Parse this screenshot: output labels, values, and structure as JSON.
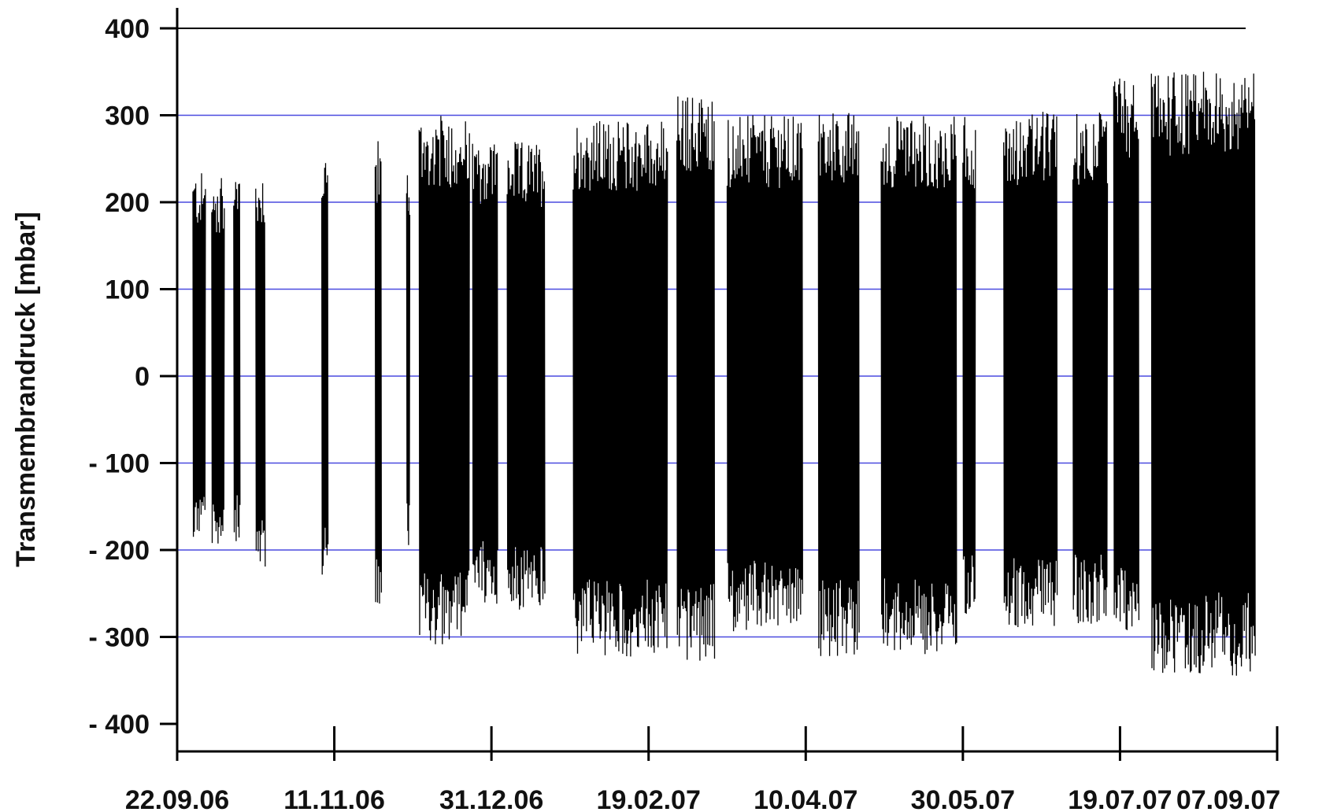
{
  "chart_data": {
    "type": "line",
    "title": "",
    "xlabel": "",
    "ylabel": "Transmembrandruck [mbar]",
    "ylim": [
      -400,
      400
    ],
    "xlim": [
      "22.09.06",
      "07.09.07"
    ],
    "grid": {
      "horizontal": true,
      "vertical": false
    },
    "colors": {
      "line": "#000000",
      "grid": "#4a4adf",
      "top_line": "#000000",
      "axis": "#000000"
    },
    "y_ticks": [
      {
        "value": 400,
        "label": "400"
      },
      {
        "value": 300,
        "label": "300"
      },
      {
        "value": 200,
        "label": "200"
      },
      {
        "value": 100,
        "label": "100"
      },
      {
        "value": 0,
        "label": "0"
      },
      {
        "value": -100,
        "label": "- 100"
      },
      {
        "value": -200,
        "label": "- 200"
      },
      {
        "value": -300,
        "label": "- 300"
      },
      {
        "value": -400,
        "label": "- 400"
      }
    ],
    "x_ticks": [
      {
        "date": "2006-09-22",
        "label": "22.09.06"
      },
      {
        "date": "2006-11-11",
        "label": "11.11.06"
      },
      {
        "date": "2006-12-31",
        "label": "31.12.06"
      },
      {
        "date": "2007-02-19",
        "label": "19.02.07"
      },
      {
        "date": "2007-04-10",
        "label": "10.04.07"
      },
      {
        "date": "2007-05-30",
        "label": "30.05.07"
      },
      {
        "date": "2007-07-19",
        "label": "19.07.07"
      },
      {
        "date": "2007-09-07",
        "label": "07.09.07"
      }
    ],
    "series": [
      {
        "segments": [
          {
            "start": "2006-09-27",
            "end": "2006-10-01",
            "max": 235,
            "min": -185
          },
          {
            "start": "2006-10-03",
            "end": "2006-10-07",
            "max": 228,
            "min": -195
          },
          {
            "start": "2006-10-10",
            "end": "2006-10-12",
            "max": 243,
            "min": -190
          },
          {
            "start": "2006-10-17",
            "end": "2006-10-20",
            "max": 237,
            "min": -220
          },
          {
            "start": "2006-11-07",
            "end": "2006-11-09",
            "max": 262,
            "min": -230
          },
          {
            "start": "2006-11-24",
            "end": "2006-11-26",
            "max": 272,
            "min": -265
          },
          {
            "start": "2006-12-04",
            "end": "2006-12-05",
            "max": 237,
            "min": -197
          },
          {
            "start": "2006-12-08",
            "end": "2006-12-24",
            "max": 300,
            "min": -310
          },
          {
            "start": "2006-12-25",
            "end": "2007-01-02",
            "max": 275,
            "min": -262
          },
          {
            "start": "2007-01-05",
            "end": "2007-01-17",
            "max": 270,
            "min": -272
          },
          {
            "start": "2007-01-26",
            "end": "2007-02-25",
            "max": 295,
            "min": -325
          },
          {
            "start": "2007-02-28",
            "end": "2007-03-12",
            "max": 325,
            "min": -330
          },
          {
            "start": "2007-03-16",
            "end": "2007-04-09",
            "max": 300,
            "min": -295
          },
          {
            "start": "2007-04-14",
            "end": "2007-04-27",
            "max": 305,
            "min": -325
          },
          {
            "start": "2007-05-04",
            "end": "2007-05-28",
            "max": 300,
            "min": -320
          },
          {
            "start": "2007-05-30",
            "end": "2007-06-03",
            "max": 300,
            "min": -285
          },
          {
            "start": "2007-06-12",
            "end": "2007-06-29",
            "max": 305,
            "min": -290
          },
          {
            "start": "2007-07-04",
            "end": "2007-07-15",
            "max": 305,
            "min": -285
          },
          {
            "start": "2007-07-17",
            "end": "2007-07-25",
            "max": 345,
            "min": -300
          },
          {
            "start": "2007-07-29",
            "end": "2007-08-31",
            "max": 350,
            "min": -345
          }
        ]
      }
    ]
  }
}
